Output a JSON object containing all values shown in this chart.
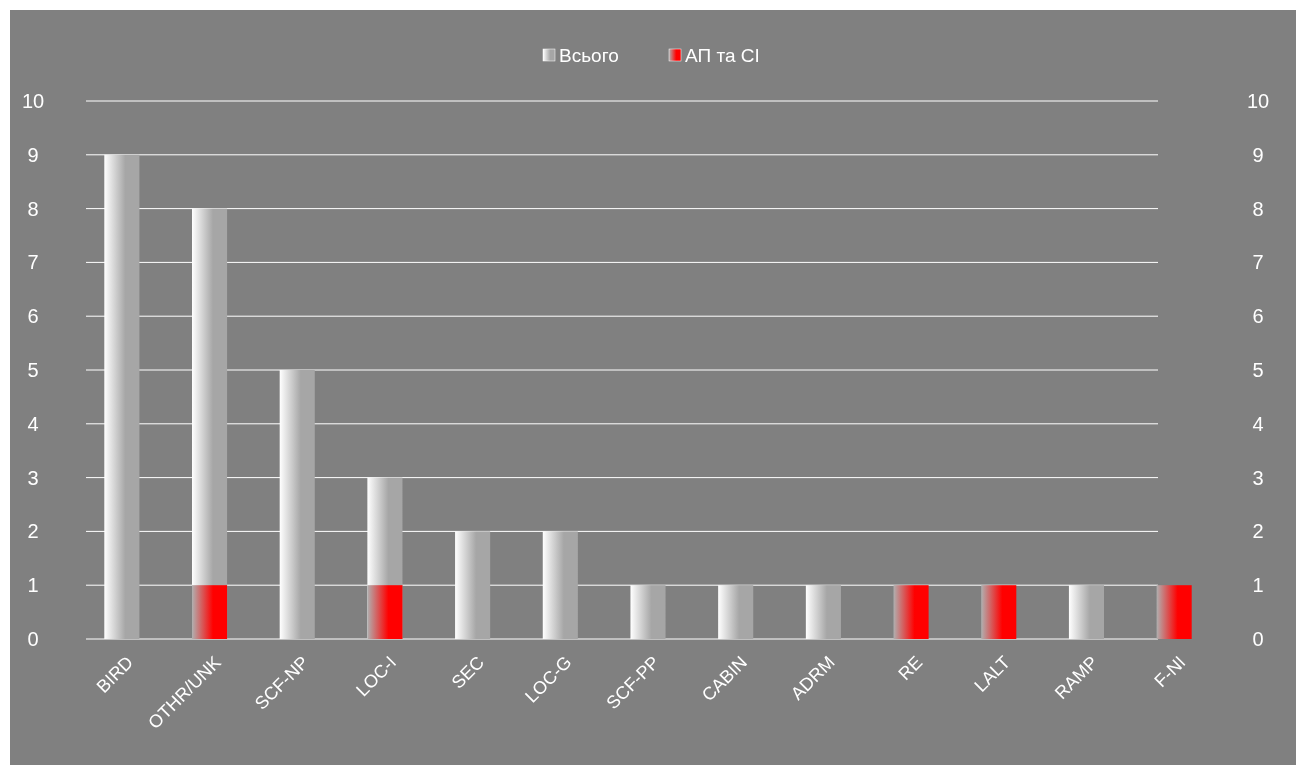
{
  "chart_data": {
    "type": "bar",
    "categories": [
      "BIRD",
      "OTHR/UNK",
      "SCF-NP",
      "LOC-I",
      "SEC",
      "LOC-G",
      "SCF-PP",
      "CABIN",
      "ADRM",
      "RE",
      "LALT",
      "RAMP",
      "F-NI"
    ],
    "series": [
      {
        "name": "Всього",
        "color": "#a6a6a6",
        "values": [
          9,
          8,
          5,
          3,
          2,
          2,
          1,
          1,
          1,
          null,
          null,
          1,
          null
        ]
      },
      {
        "name": "АП та СІ",
        "color": "#ff0000",
        "values": [
          0,
          1,
          0,
          1,
          0,
          0,
          0,
          0,
          0,
          1,
          1,
          0,
          1
        ]
      }
    ],
    "ylim": [
      0,
      10
    ],
    "yticks": [
      0,
      1,
      2,
      3,
      4,
      5,
      6,
      7,
      8,
      9,
      10
    ],
    "y2lim": [
      0,
      10
    ],
    "y2ticks": [
      0,
      1,
      2,
      3,
      4,
      5,
      6,
      7,
      8,
      9,
      10
    ],
    "grid": "y",
    "legend": "top"
  }
}
